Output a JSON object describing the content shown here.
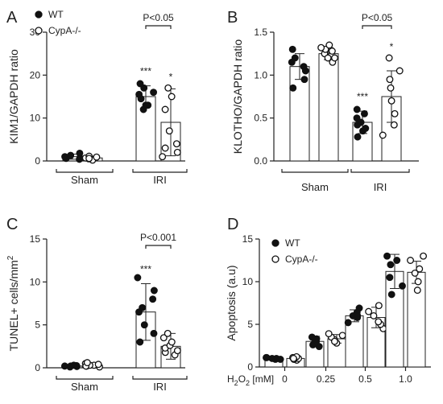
{
  "figure": {
    "legend_wt": "WT",
    "legend_cypa": "CypA-/-"
  },
  "chart_data": [
    {
      "panel": "A",
      "type": "bar",
      "ylabel": "KIM1/GAPDH ratio",
      "ylim": [
        0,
        30
      ],
      "yticks": [
        "0",
        "10",
        "20",
        "30"
      ],
      "groups": [
        "Sham",
        "IRI"
      ],
      "series": [
        {
          "name": "WT",
          "values": [
            1.0,
            15.0
          ],
          "sd": [
            0.6,
            2.5
          ],
          "points": [
            [
              0.4,
              0.7,
              1.0,
              1.3,
              1.8,
              0.6
            ],
            [
              12,
              13,
              13,
              14.5,
              15.5,
              16,
              17,
              18
            ]
          ]
        },
        {
          "name": "CypA-/-",
          "values": [
            0.7,
            9.0
          ],
          "sd": [
            0.4,
            7.8
          ],
          "points": [
            [
              0.2,
              0.5,
              0.7,
              0.9,
              1.1,
              0.6
            ],
            [
              1,
              2,
              3,
              4,
              7,
              12,
              15,
              17
            ]
          ]
        }
      ],
      "annotations": {
        "stars_wt_iri": "***",
        "stars_cypa_iri": "*",
        "pvalue": "P<0.05"
      }
    },
    {
      "panel": "B",
      "type": "bar",
      "ylabel": "KLOTHO/GAPDH ratio",
      "ylim": [
        0,
        1.5
      ],
      "yticks": [
        "0.0",
        "0.5",
        "1.0",
        "1.5"
      ],
      "groups": [
        "Sham",
        "IRI"
      ],
      "series": [
        {
          "name": "WT",
          "values": [
            1.1,
            0.45
          ],
          "sd": [
            0.15,
            0.13
          ],
          "points": [
            [
              0.85,
              1.05,
              1.1,
              1.15,
              1.2,
              1.3,
              0.95
            ],
            [
              0.28,
              0.35,
              0.38,
              0.42,
              0.45,
              0.5,
              0.55,
              0.6
            ]
          ]
        },
        {
          "name": "CypA-/-",
          "values": [
            1.25,
            0.75
          ],
          "sd": [
            0.07,
            0.3
          ],
          "points": [
            [
              1.15,
              1.2,
              1.25,
              1.28,
              1.3,
              1.32,
              1.35,
              1.2
            ],
            [
              0.3,
              0.42,
              0.55,
              0.7,
              0.85,
              0.95,
              1.05,
              1.2
            ]
          ]
        }
      ],
      "annotations": {
        "stars_wt_iri": "***",
        "stars_cypa_iri": "*",
        "pvalue": "P<0.05"
      }
    },
    {
      "panel": "C",
      "type": "bar",
      "ylabel": "TUNEL+ cells/mm",
      "ylabel_sup": "2",
      "ylim": [
        0,
        15
      ],
      "yticks": [
        "0",
        "5",
        "10",
        "15"
      ],
      "groups": [
        "Sham",
        "IRI"
      ],
      "series": [
        {
          "name": "WT",
          "values": [
            0.2,
            6.5
          ],
          "sd": [
            0.1,
            3.3
          ],
          "points": [
            [
              0.1,
              0.15,
              0.2,
              0.25,
              0.3,
              0.2
            ],
            [
              3,
              4,
              5,
              6.5,
              7,
              8,
              9,
              10.5
            ]
          ]
        },
        {
          "name": "CypA-/-",
          "values": [
            0.3,
            2.5
          ],
          "sd": [
            0.2,
            1.5
          ],
          "points": [
            [
              0.1,
              0.2,
              0.3,
              0.4,
              0.5,
              0.3,
              0.2,
              0.6
            ],
            [
              1.5,
              1.8,
              2,
              2.3,
              2.6,
              3,
              3.5,
              4
            ]
          ]
        }
      ],
      "annotations": {
        "stars_wt_iri": "***",
        "pvalue": "P<0.001"
      }
    },
    {
      "panel": "D",
      "type": "bar",
      "ylabel": "Apoptosis (a.u)",
      "ylim": [
        0,
        15
      ],
      "yticks": [
        "0",
        "5",
        "10",
        "15"
      ],
      "xlabel_prefix": "H",
      "xlabel_sub": "2",
      "xlabel_mid": "O",
      "xlabel_sub2": "2",
      "xlabel_unit": " [mM]",
      "categories": [
        "0",
        "0.25",
        "0.5",
        "1.0"
      ],
      "series": [
        {
          "name": "WT",
          "values": [
            1.0,
            3.0,
            6.0,
            11.2
          ],
          "sd": [
            0.2,
            0.6,
            0.7,
            2.0
          ],
          "points": [
            [
              0.9,
              1.0,
              1.1,
              1.0,
              0.9,
              1.1
            ],
            [
              2.4,
              2.8,
              3.0,
              3.3,
              3.5,
              2.6
            ],
            [
              5.2,
              5.8,
              6.0,
              6.4,
              6.9,
              6.0
            ],
            [
              8.5,
              9.5,
              10.5,
              12,
              13,
              12.5
            ]
          ]
        },
        {
          "name": "CypA-/-",
          "values": [
            1.0,
            3.3,
            5.8,
            11.1
          ],
          "sd": [
            0.2,
            0.5,
            1.2,
            1.3
          ],
          "points": [
            [
              0.8,
              1.0,
              1.1,
              1.2,
              0.9,
              1.0
            ],
            [
              2.8,
              3.2,
              3.5,
              3.7,
              3.9,
              3.0
            ],
            [
              4.5,
              5.0,
              5.3,
              6.0,
              6.5,
              7.2
            ],
            [
              9.0,
              10.0,
              11.0,
              11.5,
              12.5,
              13.0
            ]
          ]
        }
      ]
    }
  ]
}
